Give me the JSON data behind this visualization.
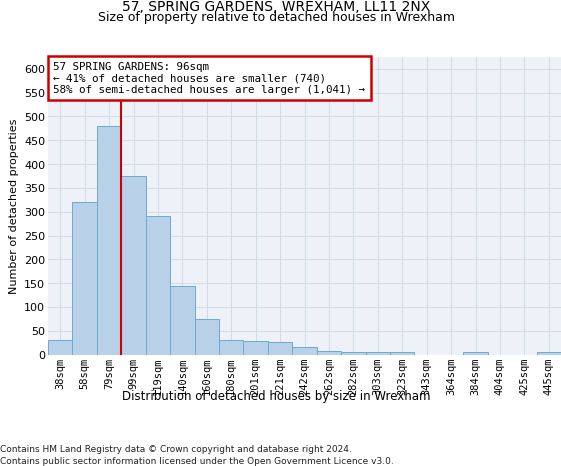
{
  "title": "57, SPRING GARDENS, WREXHAM, LL11 2NX",
  "subtitle": "Size of property relative to detached houses in Wrexham",
  "xlabel": "Distribution of detached houses by size in Wrexham",
  "ylabel": "Number of detached properties",
  "bar_color": "#b8d0e8",
  "bar_edge_color": "#6aaad4",
  "grid_color": "#d0dce8",
  "background_color": "#eef2f8",
  "categories": [
    "38sqm",
    "58sqm",
    "79sqm",
    "99sqm",
    "119sqm",
    "140sqm",
    "160sqm",
    "180sqm",
    "201sqm",
    "221sqm",
    "242sqm",
    "262sqm",
    "282sqm",
    "303sqm",
    "323sqm",
    "343sqm",
    "364sqm",
    "384sqm",
    "404sqm",
    "425sqm",
    "445sqm"
  ],
  "values": [
    30,
    320,
    480,
    375,
    290,
    143,
    75,
    30,
    28,
    27,
    15,
    8,
    6,
    5,
    5,
    0,
    0,
    5,
    0,
    0,
    5
  ],
  "vline_pos": 2.5,
  "vline_color": "#cc0000",
  "annotation_line1": "57 SPRING GARDENS: 96sqm",
  "annotation_line2": "← 41% of detached houses are smaller (740)",
  "annotation_line3": "58% of semi-detached houses are larger (1,041) →",
  "annotation_box_color": "#cc0000",
  "footnote_line1": "Contains HM Land Registry data © Crown copyright and database right 2024.",
  "footnote_line2": "Contains public sector information licensed under the Open Government Licence v3.0.",
  "ylim": [
    0,
    625
  ],
  "yticks": [
    0,
    50,
    100,
    150,
    200,
    250,
    300,
    350,
    400,
    450,
    500,
    550,
    600
  ]
}
